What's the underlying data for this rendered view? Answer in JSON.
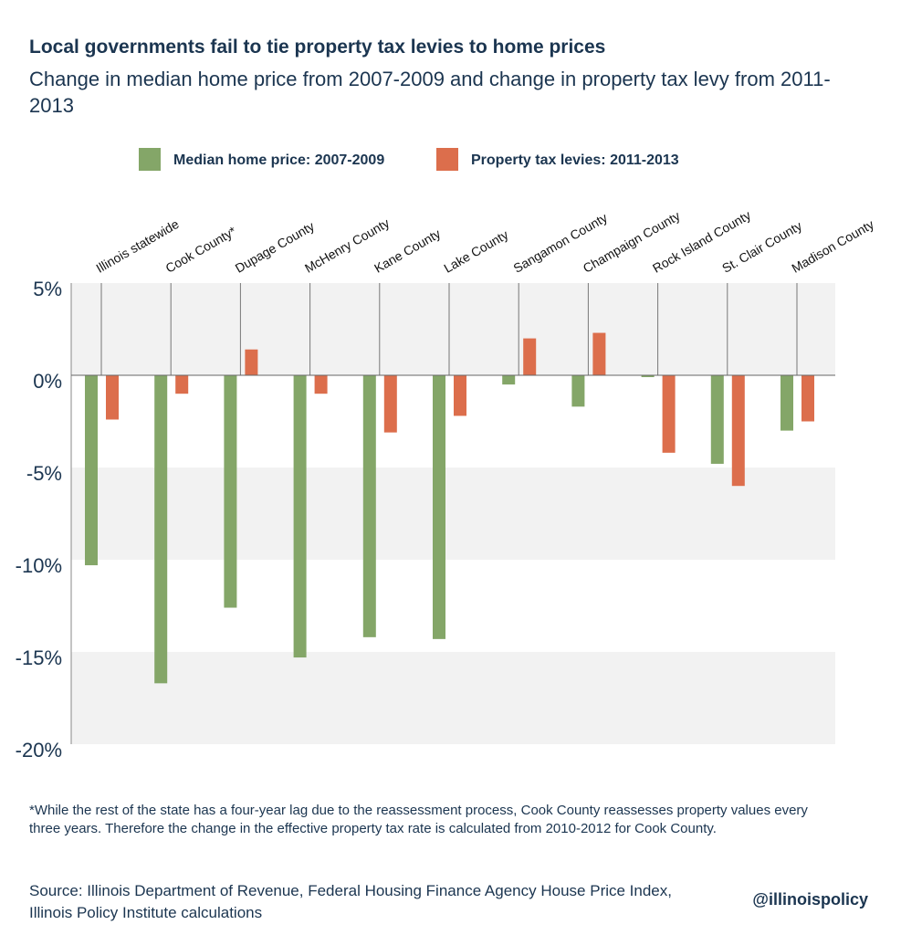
{
  "chart_data": {
    "type": "bar",
    "title": "Local governments fail to tie property tax levies to home prices",
    "subtitle": "Change in median home price from 2007-2009 and change in property tax levy from 2011-2013",
    "categories": [
      "Illinois statewide",
      "Cook County*",
      "Dupage County",
      "McHenry County",
      "Kane County",
      "Lake County",
      "Sangamon County",
      "Champaign County",
      "Rock Island County",
      "St. Clair County",
      "Madison County"
    ],
    "series": [
      {
        "name": "Median home price: 2007-2009",
        "color": "#84a668",
        "values": [
          -10.3,
          -16.7,
          -12.6,
          -15.3,
          -14.2,
          -14.3,
          -0.5,
          -1.7,
          -0.1,
          -4.8,
          -3.0
        ]
      },
      {
        "name": "Property tax levies: 2011-2013",
        "color": "#dc6e4c",
        "values": [
          -2.4,
          -1.0,
          1.4,
          -1.0,
          -3.1,
          -2.2,
          2.0,
          2.3,
          -4.2,
          -6.0,
          -2.5
        ]
      }
    ],
    "ylim": [
      -20,
      5
    ],
    "yticks": [
      {
        "value": 5,
        "label": "5%"
      },
      {
        "value": 0,
        "label": "0%"
      },
      {
        "value": -5,
        "label": "-5%"
      },
      {
        "value": -10,
        "label": "-10%"
      },
      {
        "value": -15,
        "label": "-15%"
      },
      {
        "value": -20,
        "label": "-20%"
      }
    ],
    "note": "*While the rest of the state has a four-year lag due to the reassessment process, Cook County reassesses property values every three years. Therefore the change in the effective property tax rate is calculated from 2010-2012 for Cook County.",
    "source": "Source: Illinois Department of Revenue, Federal Housing Finance Agency House Price Index, Illinois Policy Institute calculations",
    "credit": "@illinoispolicy"
  }
}
